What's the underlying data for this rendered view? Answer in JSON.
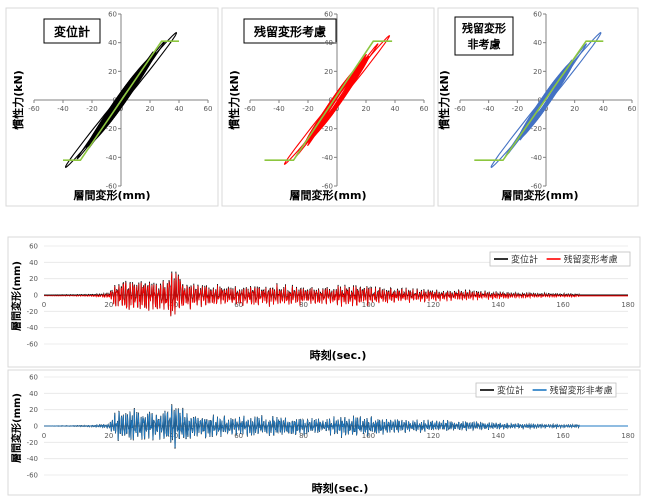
{
  "chart_data": [
    {
      "type": "scatter",
      "title": "変位計",
      "xlabel": "層間変形(mm)",
      "ylabel": "慣性力(kN)",
      "xlim": [
        -60,
        60
      ],
      "ylim": [
        -60,
        60
      ],
      "xticks": [
        -60,
        -40,
        -20,
        0,
        20,
        40,
        60
      ],
      "yticks": [
        -60,
        -40,
        -20,
        0,
        20,
        40,
        60
      ],
      "grid": "none",
      "colors": {
        "hysteresis": "#000000",
        "skeleton": "#8cc63f"
      },
      "skeleton_x": [
        -40,
        -28,
        28,
        40
      ],
      "skeleton_y": [
        -42,
        -42,
        41,
        41
      ],
      "loops": [
        {
          "amp": 38,
          "force": 50,
          "open": 6
        },
        {
          "amp": 30,
          "force": 44,
          "open": 4
        },
        {
          "amp": 22,
          "force": 36,
          "open": 3
        }
      ]
    },
    {
      "type": "scatter",
      "title": "残留変形考慮",
      "xlabel": "層間変形(mm)",
      "ylabel": "慣性力(kN)",
      "xlim": [
        -60,
        60
      ],
      "ylim": [
        -60,
        60
      ],
      "xticks": [
        -60,
        -40,
        -20,
        0,
        20,
        40,
        60
      ],
      "yticks": [
        -60,
        -40,
        -20,
        0,
        20,
        40,
        60
      ],
      "grid": "none",
      "colors": {
        "hysteresis": "#ff0000",
        "skeleton": "#8cc63f"
      },
      "skeleton_x": [
        -50,
        -30,
        25,
        38
      ],
      "skeleton_y": [
        -42,
        -42,
        41,
        41
      ],
      "loops": [
        {
          "amp": 36,
          "force": 48,
          "open": 5
        },
        {
          "amp": 28,
          "force": 42,
          "open": 4
        },
        {
          "amp": 20,
          "force": 34,
          "open": 3
        }
      ]
    },
    {
      "type": "scatter",
      "title": "残留変形\n非考慮",
      "xlabel": "層間変形(mm)",
      "ylabel": "慣性力(kN)",
      "xlim": [
        -60,
        60
      ],
      "ylim": [
        -60,
        60
      ],
      "xticks": [
        -60,
        -40,
        -20,
        0,
        20,
        40,
        60
      ],
      "yticks": [
        -60,
        -40,
        -20,
        0,
        20,
        40,
        60
      ],
      "grid": "none",
      "colors": {
        "hysteresis": "#4472c4",
        "skeleton": "#8cc63f"
      },
      "skeleton_x": [
        -50,
        -30,
        28,
        40
      ],
      "skeleton_y": [
        -42,
        -42,
        41,
        41
      ],
      "loops": [
        {
          "amp": 38,
          "force": 50,
          "open": 6
        },
        {
          "amp": 28,
          "force": 42,
          "open": 4
        },
        {
          "amp": 18,
          "force": 30,
          "open": 3
        }
      ]
    },
    {
      "type": "line",
      "xlabel": "時刻(sec.)",
      "ylabel": "層間変形(mm)",
      "xlim": [
        0,
        180
      ],
      "ylim": [
        -60,
        60
      ],
      "xticks": [
        0,
        20,
        40,
        60,
        80,
        100,
        120,
        140,
        160,
        180
      ],
      "yticks": [
        -60,
        -40,
        -20,
        0,
        20,
        40,
        60
      ],
      "legend": "top-right",
      "series": [
        {
          "name": "変位計",
          "color": "#000000",
          "width": 1.2
        },
        {
          "name": "残留変形考慮",
          "color": "#ff0000",
          "width": 1.0
        }
      ],
      "envelope": {
        "times": [
          0,
          15,
          20,
          22,
          26,
          30,
          36,
          40,
          44,
          48,
          55,
          62,
          70,
          78,
          86,
          94,
          100,
          108,
          116,
          124,
          132,
          140,
          150,
          160,
          165
        ],
        "amplitudes": [
          0,
          1,
          3,
          18,
          24,
          22,
          20,
          32,
          18,
          15,
          13,
          12,
          14,
          12,
          10,
          14,
          12,
          9,
          8,
          7,
          6,
          4,
          3,
          2,
          2
        ]
      },
      "series_offsets": [
        0,
        -1
      ]
    },
    {
      "type": "line",
      "xlabel": "時刻(sec.)",
      "ylabel": "層間変形(mm)",
      "xlim": [
        0,
        180
      ],
      "ylim": [
        -60,
        60
      ],
      "xticks": [
        0,
        20,
        40,
        60,
        80,
        100,
        120,
        140,
        160,
        180
      ],
      "yticks": [
        -60,
        -40,
        -20,
        0,
        20,
        40,
        60
      ],
      "legend": "top-right",
      "series": [
        {
          "name": "変位計",
          "color": "#000000",
          "width": 1.2
        },
        {
          "name": "残留変形非考慮",
          "color": "#1f7ac3",
          "width": 1.0
        }
      ],
      "envelope": {
        "times": [
          0,
          15,
          20,
          22,
          26,
          30,
          36,
          40,
          44,
          48,
          55,
          62,
          70,
          78,
          86,
          94,
          100,
          108,
          116,
          124,
          132,
          140,
          150,
          160,
          165
        ],
        "amplitudes": [
          0,
          1,
          3,
          20,
          22,
          20,
          18,
          30,
          18,
          15,
          13,
          12,
          14,
          12,
          10,
          14,
          12,
          9,
          8,
          7,
          6,
          4,
          3,
          2,
          2
        ]
      },
      "series_offsets": [
        0,
        0
      ]
    }
  ]
}
